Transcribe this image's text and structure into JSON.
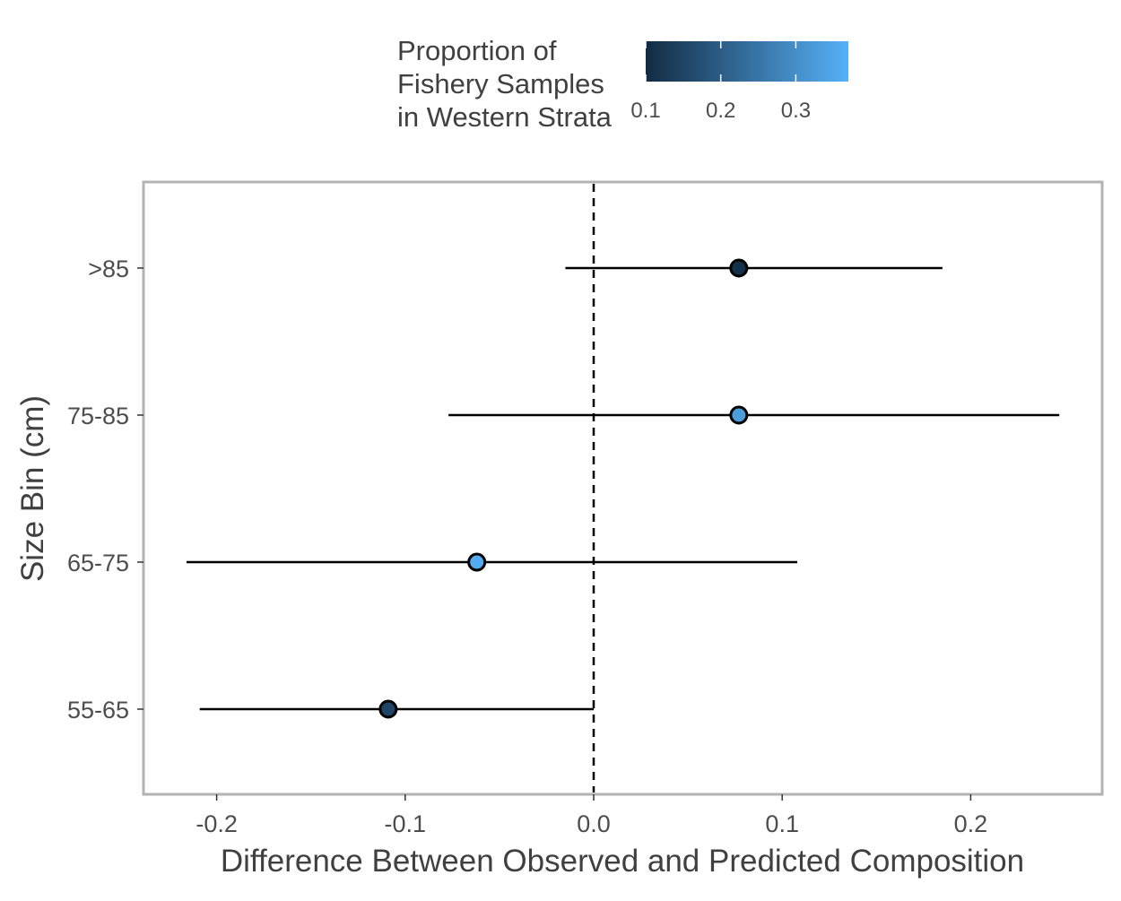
{
  "chart_data": {
    "type": "scatter",
    "subtype": "point-range",
    "xlabel": "Difference Between Observed and Predicted Composition",
    "ylabel": "Size Bin (cm)",
    "xlim": [
      -0.24,
      0.27
    ],
    "x_ticks": [
      -0.2,
      -0.1,
      0.0,
      0.1,
      0.2
    ],
    "x_tick_labels": [
      "-0.2",
      "-0.1",
      "0.0",
      "0.1",
      "0.2"
    ],
    "categories": [
      "55-65",
      "65-75",
      "75-85",
      ">85"
    ],
    "reference_line": {
      "x": 0,
      "style": "dashed"
    },
    "grid": false,
    "legend": {
      "title_lines": [
        "Proportion of",
        "Fishery Samples",
        "in Western Strata"
      ],
      "placement": "top",
      "type": "colorbar",
      "range": [
        0.1,
        0.37
      ],
      "ticks": [
        0.1,
        0.2,
        0.3
      ],
      "tick_labels": [
        "0.1",
        "0.2",
        "0.3"
      ],
      "color_low": "#132B43",
      "color_high": "#56B1F7"
    },
    "points": [
      {
        "category": "55-65",
        "value": -0.109,
        "lower": -0.209,
        "upper": 0.0,
        "color_value": 0.15
      },
      {
        "category": "65-75",
        "value": -0.062,
        "lower": -0.216,
        "upper": 0.108,
        "color_value": 0.36
      },
      {
        "category": "75-85",
        "value": 0.077,
        "lower": -0.077,
        "upper": 0.247,
        "color_value": 0.33
      },
      {
        "category": ">85",
        "value": 0.077,
        "lower": -0.015,
        "upper": 0.185,
        "color_value": 0.11
      }
    ]
  }
}
